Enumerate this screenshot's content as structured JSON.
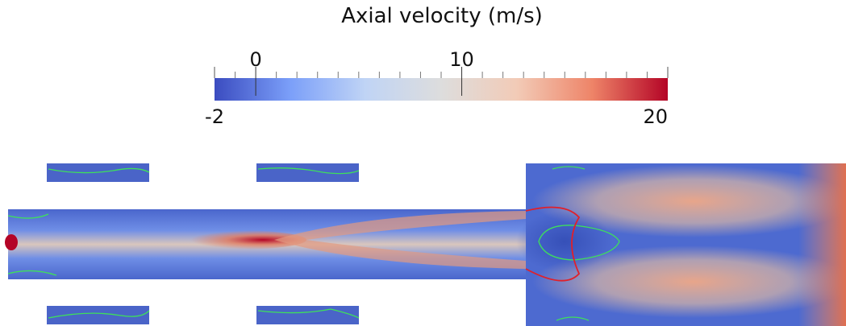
{
  "chart_data": {
    "type": "colorbar",
    "title": "Axial velocity (m/s)",
    "clim": [
      -2,
      20
    ],
    "ticks": [
      0,
      10
    ],
    "minor_ticks": [
      -1,
      1,
      2,
      3,
      4,
      5,
      6,
      7,
      8,
      9,
      11,
      12,
      13,
      14,
      15,
      16,
      17,
      18,
      19
    ],
    "colormap": [
      "#3b4cc0",
      "#7b9ff9",
      "#c0d4f5",
      "#dddddd",
      "#f2cbb7",
      "#ee8468",
      "#b40426"
    ]
  }
}
